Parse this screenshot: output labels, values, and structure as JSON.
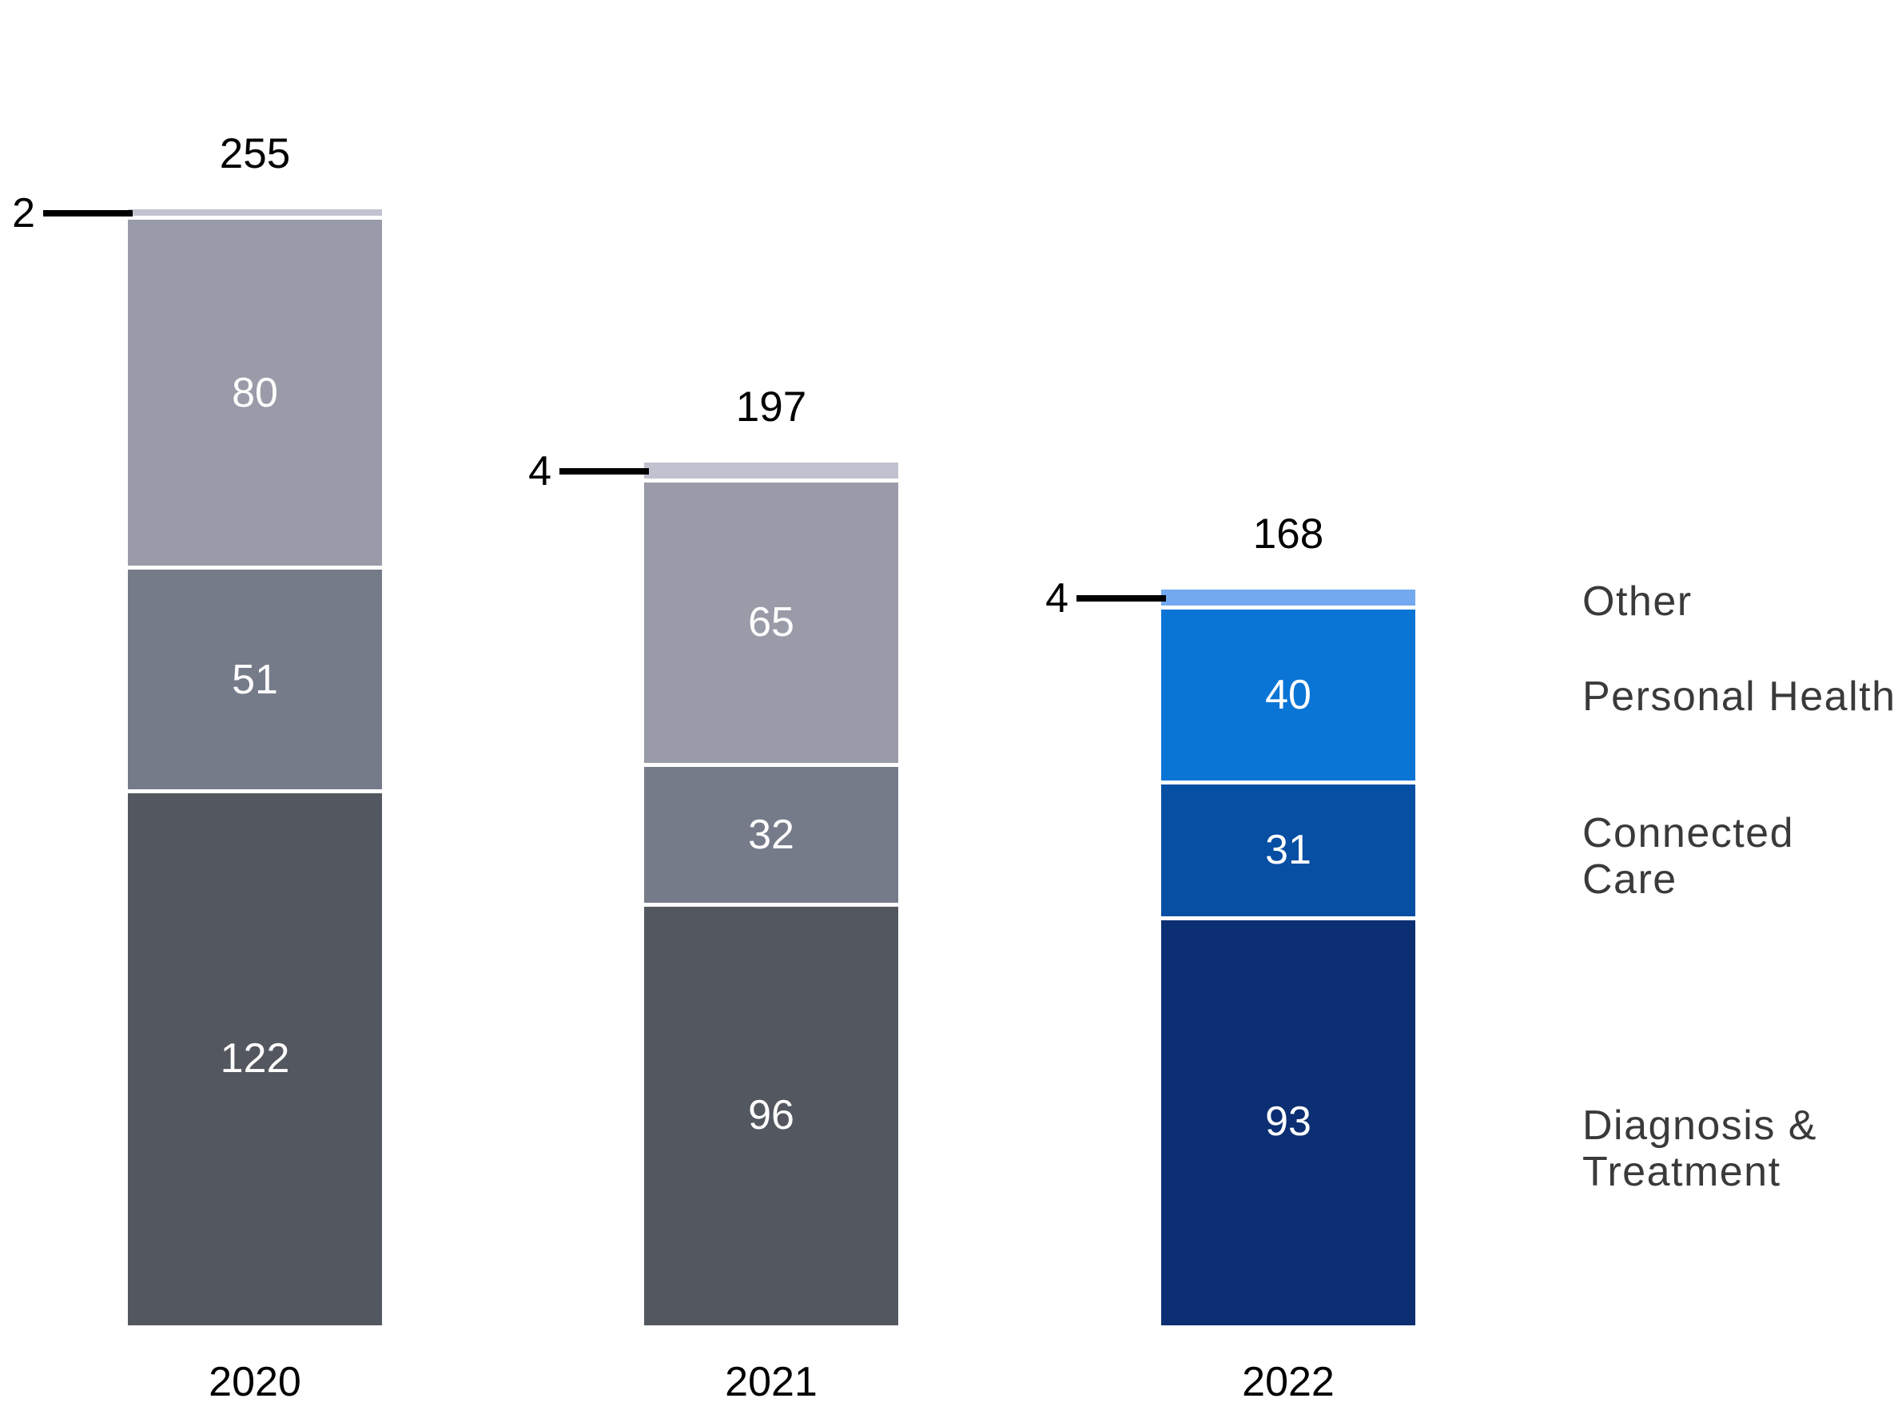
{
  "chart_data": {
    "type": "bar",
    "variant": "stacked-column",
    "title": "",
    "categories": [
      "2020",
      "2021",
      "2022"
    ],
    "series": [
      {
        "name": "Diagnosis & Treatment",
        "values": [
          122,
          96,
          93
        ]
      },
      {
        "name": "Connected Care",
        "values": [
          51,
          32,
          31
        ]
      },
      {
        "name": "Personal Health",
        "values": [
          80,
          65,
          40
        ]
      },
      {
        "name": "Other",
        "values": [
          2,
          4,
          4
        ]
      }
    ],
    "totals": [
      255,
      197,
      168
    ],
    "small_segment_callouts": [
      2,
      4,
      4
    ],
    "legend_position": "right",
    "legend_labels": [
      "Other",
      "Personal Health",
      "Connected Care",
      "Diagnosis &\nTreatment"
    ],
    "legend_series_order": [
      "Other",
      "Personal Health",
      "Connected Care",
      "Diagnosis & Treatment"
    ],
    "grid": false,
    "axes": "hidden",
    "colors": {
      "background": "#ffffff",
      "series_2020_2021": {
        "Diagnosis & Treatment": "#53575f",
        "Connected Care": "#767b8a",
        "Personal Health": "#9a9ba8",
        "Other": "#c0c2cf"
      },
      "series_2022": {
        "Diagnosis & Treatment": "#0b2f72",
        "Connected Care": "#064fa3",
        "Personal Health": "#0b75d6",
        "Other": "#72a9ef"
      },
      "segment_value_text": "#ffffff",
      "total_text": "#000000",
      "category_text": "#000000",
      "legend_text": "#3a3a3a",
      "callout": "#000000"
    }
  }
}
